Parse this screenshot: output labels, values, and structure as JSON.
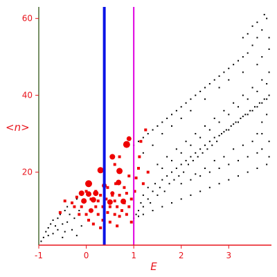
{
  "chart_data": {
    "type": "scatter",
    "title": "",
    "xlabel": "E",
    "ylabel": "<n>",
    "xlim": [
      -1,
      3.9
    ],
    "ylim": [
      1,
      63
    ],
    "xticks": [
      -1,
      0,
      1,
      2,
      3
    ],
    "yticks": [
      20,
      40,
      60
    ],
    "grid": false,
    "vlines": [
      {
        "x": 0.38,
        "color": "#0a14e6"
      },
      {
        "x": 1.0,
        "color": "#e000e0"
      }
    ],
    "colors": {
      "axis": "#e8141c",
      "left_axis": "#4a6b34",
      "black_points": "#000000",
      "red_points": "#ee0000"
    },
    "series": [
      {
        "marker": "small-black-dot",
        "points": [
          [
            -0.95,
            2
          ],
          [
            -0.9,
            3
          ],
          [
            -0.85,
            4.5
          ],
          [
            -0.8,
            3.5
          ],
          [
            -0.8,
            5.5
          ],
          [
            -0.75,
            6.5
          ],
          [
            -0.7,
            4
          ],
          [
            -0.7,
            7.5
          ],
          [
            -0.65,
            6
          ],
          [
            -0.6,
            5
          ],
          [
            -0.6,
            8
          ],
          [
            -0.55,
            9
          ],
          [
            -0.5,
            3
          ],
          [
            -0.5,
            6.5
          ],
          [
            -0.45,
            10
          ],
          [
            -0.45,
            4.5
          ],
          [
            -0.4,
            7
          ],
          [
            -0.4,
            11
          ],
          [
            -0.35,
            9
          ],
          [
            -0.3,
            5
          ],
          [
            -0.3,
            12
          ],
          [
            -0.25,
            8
          ],
          [
            -0.2,
            13
          ],
          [
            -0.2,
            3.5
          ],
          [
            -0.15,
            10
          ],
          [
            -0.1,
            6
          ],
          [
            1.05,
            9
          ],
          [
            1.1,
            10
          ],
          [
            1.15,
            12
          ],
          [
            1.2,
            11
          ],
          [
            1.2,
            14
          ],
          [
            1.3,
            13
          ],
          [
            1.3,
            16
          ],
          [
            1.35,
            12
          ],
          [
            1.4,
            15
          ],
          [
            1.45,
            17
          ],
          [
            1.5,
            14
          ],
          [
            1.55,
            16
          ],
          [
            1.6,
            18
          ],
          [
            1.65,
            15
          ],
          [
            1.7,
            19
          ],
          [
            1.75,
            17
          ],
          [
            1.8,
            20
          ],
          [
            1.85,
            18
          ],
          [
            1.9,
            21
          ],
          [
            1.95,
            19
          ],
          [
            2.0,
            22
          ],
          [
            2.05,
            20
          ],
          [
            2.1,
            23
          ],
          [
            2.15,
            22
          ],
          [
            2.2,
            24
          ],
          [
            2.25,
            23
          ],
          [
            2.3,
            25
          ],
          [
            2.35,
            24
          ],
          [
            2.4,
            26
          ],
          [
            2.45,
            25
          ],
          [
            2.5,
            27
          ],
          [
            2.55,
            26
          ],
          [
            2.6,
            28
          ],
          [
            2.65,
            27
          ],
          [
            2.7,
            29
          ],
          [
            2.75,
            28
          ],
          [
            2.8,
            29.5
          ],
          [
            2.85,
            30
          ],
          [
            2.9,
            30.5
          ],
          [
            2.95,
            31
          ],
          [
            3.0,
            31
          ],
          [
            3.05,
            32
          ],
          [
            3.1,
            32.5
          ],
          [
            3.15,
            33
          ],
          [
            3.2,
            33
          ],
          [
            3.25,
            34
          ],
          [
            3.3,
            34.5
          ],
          [
            3.35,
            35
          ],
          [
            3.4,
            35
          ],
          [
            3.45,
            36
          ],
          [
            3.5,
            36
          ],
          [
            3.55,
            37
          ],
          [
            3.6,
            37
          ],
          [
            3.65,
            38
          ],
          [
            3.7,
            38
          ],
          [
            3.75,
            39
          ],
          [
            3.8,
            39
          ],
          [
            3.85,
            40
          ],
          [
            1.0,
            8
          ],
          [
            1.1,
            8.5
          ],
          [
            1.2,
            9
          ],
          [
            1.4,
            10
          ],
          [
            1.6,
            11
          ],
          [
            1.8,
            12
          ],
          [
            2.0,
            13
          ],
          [
            2.2,
            14
          ],
          [
            2.4,
            15
          ],
          [
            2.6,
            16
          ],
          [
            2.8,
            17
          ],
          [
            3.0,
            18
          ],
          [
            3.2,
            19
          ],
          [
            3.4,
            20
          ],
          [
            3.6,
            21
          ],
          [
            3.8,
            22
          ],
          [
            1.0,
            27
          ],
          [
            1.1,
            28
          ],
          [
            1.2,
            29
          ],
          [
            1.3,
            30
          ],
          [
            1.4,
            31
          ],
          [
            1.5,
            32
          ],
          [
            1.6,
            33
          ],
          [
            1.7,
            34
          ],
          [
            1.8,
            35
          ],
          [
            1.9,
            36
          ],
          [
            2.0,
            37
          ],
          [
            2.1,
            38
          ],
          [
            2.2,
            39
          ],
          [
            2.3,
            40
          ],
          [
            2.4,
            41
          ],
          [
            2.5,
            42
          ],
          [
            2.6,
            43
          ],
          [
            2.7,
            44
          ],
          [
            2.8,
            45
          ],
          [
            2.9,
            46
          ],
          [
            3.0,
            47
          ],
          [
            3.1,
            48
          ],
          [
            3.2,
            49
          ],
          [
            3.3,
            50
          ],
          [
            3.4,
            51
          ],
          [
            3.5,
            53
          ],
          [
            3.6,
            55
          ],
          [
            3.7,
            57
          ],
          [
            3.8,
            60
          ],
          [
            1.5,
            22
          ],
          [
            1.6,
            21
          ],
          [
            1.7,
            24
          ],
          [
            1.8,
            23
          ],
          [
            1.9,
            26
          ],
          [
            2.0,
            25
          ],
          [
            2.1,
            28
          ],
          [
            2.2,
            27
          ],
          [
            2.3,
            30
          ],
          [
            2.4,
            29
          ],
          [
            2.5,
            32
          ],
          [
            2.6,
            31
          ],
          [
            2.7,
            34
          ],
          [
            2.8,
            33
          ],
          [
            2.9,
            36
          ],
          [
            3.0,
            35
          ],
          [
            3.1,
            38
          ],
          [
            3.2,
            37
          ],
          [
            3.3,
            40
          ],
          [
            3.4,
            39
          ],
          [
            3.5,
            42
          ],
          [
            3.6,
            41
          ],
          [
            3.7,
            44
          ],
          [
            3.8,
            43
          ],
          [
            2.2,
            18
          ],
          [
            2.4,
            19
          ],
          [
            2.6,
            20
          ],
          [
            2.8,
            21
          ],
          [
            3.0,
            22
          ],
          [
            3.2,
            23
          ],
          [
            3.4,
            24
          ],
          [
            3.6,
            25
          ],
          [
            2.0,
            17
          ],
          [
            2.3,
            19.5
          ],
          [
            2.5,
            21
          ],
          [
            2.7,
            23
          ],
          [
            2.9,
            24
          ],
          [
            3.1,
            26
          ],
          [
            3.3,
            27
          ],
          [
            3.5,
            28
          ],
          [
            3.7,
            30
          ],
          [
            1.2,
            25
          ],
          [
            1.4,
            27
          ],
          [
            1.6,
            30
          ],
          [
            1.8,
            32
          ],
          [
            2.0,
            34
          ],
          [
            2.2,
            36
          ],
          [
            2.5,
            39
          ],
          [
            2.8,
            42
          ],
          [
            3.0,
            44
          ],
          [
            3.3,
            46
          ],
          [
            3.6,
            48
          ],
          [
            3.85,
            52
          ],
          [
            3.5,
            58
          ],
          [
            3.6,
            59
          ],
          [
            3.75,
            61
          ],
          [
            3.4,
            56
          ],
          [
            3.3,
            55
          ],
          [
            3.85,
            55
          ],
          [
            3.7,
            50
          ],
          [
            3.85,
            46
          ],
          [
            3.8,
            35
          ],
          [
            3.7,
            33
          ],
          [
            3.6,
            30
          ],
          [
            3.85,
            28
          ],
          [
            3.7,
            26
          ],
          [
            3.85,
            24
          ]
        ]
      },
      {
        "marker": "red-circle",
        "points": [
          [
            -0.1,
            14.5,
            4
          ],
          [
            0.05,
            14.3,
            4
          ],
          [
            -0.05,
            12.5,
            4
          ],
          [
            0.15,
            12.8,
            4
          ],
          [
            0.05,
            17,
            5
          ],
          [
            0.3,
            20.5,
            4.5
          ],
          [
            0.55,
            24,
            4
          ],
          [
            0.85,
            27.2,
            5
          ],
          [
            0.7,
            20.3,
            4.5
          ],
          [
            0.68,
            17.3,
            4
          ],
          [
            0.5,
            12.2,
            4
          ],
          [
            0.78,
            12.4,
            4
          ],
          [
            0.1,
            10,
            3.5
          ],
          [
            0.2,
            14.5,
            4
          ],
          [
            0.9,
            28.7,
            3.5
          ],
          [
            0.38,
            16.5,
            3.5
          ],
          [
            0.55,
            14.5,
            3
          ]
        ]
      },
      {
        "marker": "red-square",
        "points": [
          [
            -0.3,
            12
          ],
          [
            -0.25,
            11
          ],
          [
            -0.2,
            13.5
          ],
          [
            -0.15,
            9
          ],
          [
            -0.1,
            11
          ],
          [
            0.0,
            9
          ],
          [
            0.0,
            15
          ],
          [
            0.05,
            7.5
          ],
          [
            0.1,
            13
          ],
          [
            0.15,
            6.5
          ],
          [
            0.2,
            11
          ],
          [
            0.2,
            15
          ],
          [
            0.25,
            9
          ],
          [
            0.25,
            12.5
          ],
          [
            0.3,
            5.5
          ],
          [
            0.3,
            14
          ],
          [
            0.35,
            7.5
          ],
          [
            0.35,
            11
          ],
          [
            0.42,
            13
          ],
          [
            0.45,
            9.5
          ],
          [
            0.45,
            16
          ],
          [
            0.5,
            7
          ],
          [
            0.5,
            11
          ],
          [
            0.55,
            14
          ],
          [
            0.6,
            9
          ],
          [
            0.6,
            12.5
          ],
          [
            0.62,
            17
          ],
          [
            0.65,
            6
          ],
          [
            0.65,
            11
          ],
          [
            0.7,
            8.5
          ],
          [
            0.7,
            14
          ],
          [
            0.75,
            10
          ],
          [
            0.8,
            16
          ],
          [
            0.8,
            12
          ],
          [
            0.85,
            9
          ],
          [
            0.85,
            14.5
          ],
          [
            0.9,
            11
          ],
          [
            0.9,
            19
          ],
          [
            0.95,
            7
          ],
          [
            0.95,
            13
          ],
          [
            1.02,
            15
          ],
          [
            1.05,
            18.5
          ],
          [
            1.1,
            21
          ],
          [
            1.12,
            24
          ],
          [
            1.2,
            17
          ],
          [
            1.3,
            20
          ],
          [
            1.25,
            31
          ],
          [
            -0.55,
            9.5
          ],
          [
            -0.45,
            12.5
          ],
          [
            0.6,
            22
          ],
          [
            0.7,
            24
          ],
          [
            1.15,
            28
          ]
        ]
      }
    ]
  }
}
